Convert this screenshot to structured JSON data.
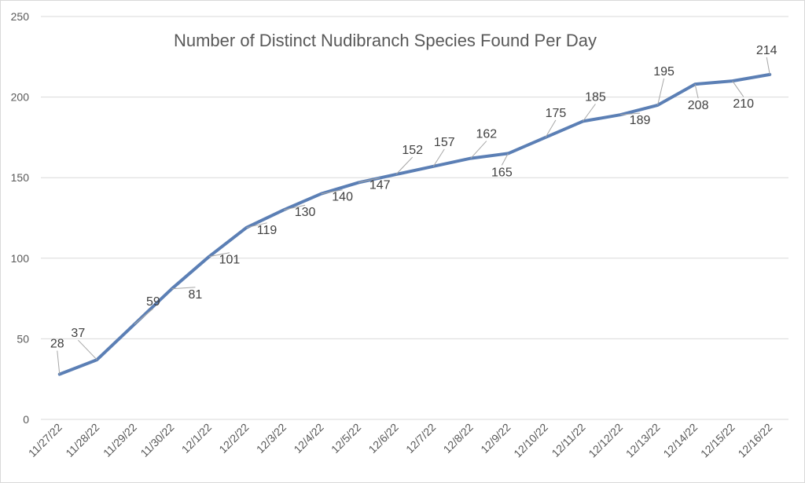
{
  "chart_data": {
    "type": "line",
    "title": "Number of Distinct Nudibranch Species Found Per Day",
    "xlabel": "",
    "ylabel": "",
    "ylim": [
      0,
      250
    ],
    "yticks": [
      0,
      50,
      100,
      150,
      200,
      250
    ],
    "grid": true,
    "legend": "none",
    "categories": [
      "11/27/22",
      "11/28/22",
      "11/29/22",
      "11/30/22",
      "12/1/22",
      "12/2/22",
      "12/3/22",
      "12/4/22",
      "12/5/22",
      "12/6/22",
      "12/7/22",
      "12/8/22",
      "12/9/22",
      "12/10/22",
      "12/11/22",
      "12/12/22",
      "12/13/22",
      "12/14/22",
      "12/15/22",
      "12/16/22"
    ],
    "series": [
      {
        "color": "#5b7fb5",
        "values": [
          28,
          37,
          59,
          81,
          101,
          119,
          130,
          140,
          147,
          152,
          157,
          162,
          165,
          175,
          185,
          189,
          195,
          208,
          210,
          214
        ]
      }
    ]
  }
}
